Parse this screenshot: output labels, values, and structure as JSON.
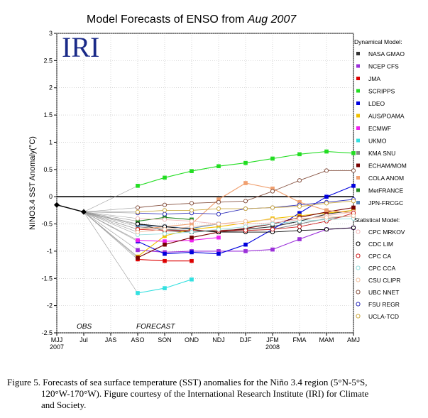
{
  "chart_data": {
    "type": "line",
    "title_main": "Model Forecasts of ENSO from ",
    "title_italic": "Aug 2007",
    "logo_text": "IRI",
    "ylabel": "NINO3.4 SST Anomaly(°C)",
    "ylim": [
      -2.5,
      3
    ],
    "yticks": [
      "3",
      "2.5",
      "2",
      "1.5",
      "1",
      "0.5",
      "0",
      "-0.5",
      "-1",
      "-1.5",
      "-2",
      "-2.5"
    ],
    "categories": [
      "MJJ",
      "Jul",
      "JAS",
      "ASO",
      "SON",
      "OND",
      "NDJ",
      "DJF",
      "JFM",
      "FMA",
      "MAM",
      "AMJ"
    ],
    "year_labels": [
      {
        "text": "2007",
        "index": 0
      },
      {
        "text": "2008",
        "index": 8
      }
    ],
    "obs_label": "OBS",
    "forecast_label": "FORECAST",
    "observed": {
      "values": [
        -0.15,
        -0.28
      ],
      "color": "#000000"
    },
    "dynamical_heading": "Dynamical Model:",
    "statistical_heading": "Statistical Model:",
    "series": [
      {
        "name": "NASA GMAO",
        "group": "dynamical",
        "color": "#333333",
        "marker": "square",
        "values": [
          null,
          null,
          null,
          -0.5,
          -0.62,
          -0.65,
          -0.62,
          -0.6,
          -0.55,
          -0.45,
          -0.32,
          -0.25
        ]
      },
      {
        "name": "NCEP CFS",
        "group": "dynamical",
        "color": "#9b30d9",
        "marker": "square",
        "values": [
          null,
          null,
          null,
          -0.98,
          -1.02,
          -1.0,
          -1.0,
          -1.0,
          -0.97,
          -0.78,
          -0.6,
          -0.57
        ]
      },
      {
        "name": "JMA",
        "group": "dynamical",
        "color": "#dd0000",
        "marker": "square",
        "values": [
          null,
          null,
          null,
          -1.15,
          -1.18,
          -1.18,
          null,
          null,
          null,
          null,
          null,
          null
        ]
      },
      {
        "name": "SCRIPPS",
        "group": "dynamical",
        "color": "#22dd22",
        "marker": "square",
        "values": [
          null,
          null,
          null,
          0.2,
          0.35,
          0.47,
          0.56,
          0.62,
          0.7,
          0.78,
          0.83,
          0.8
        ]
      },
      {
        "name": "LDEO",
        "group": "dynamical",
        "color": "#0000dd",
        "marker": "square",
        "values": [
          null,
          null,
          null,
          -0.82,
          -1.05,
          -1.02,
          -1.05,
          -0.88,
          -0.6,
          -0.3,
          0.0,
          0.2
        ]
      },
      {
        "name": "AUS/POAMA",
        "group": "dynamical",
        "color": "#f0c000",
        "marker": "square",
        "values": [
          null,
          null,
          null,
          -1.1,
          -0.72,
          -0.6,
          -0.55,
          -0.48,
          -0.4,
          -0.35,
          -0.3,
          -0.25
        ]
      },
      {
        "name": "ECMWF",
        "group": "dynamical",
        "color": "#ee22ee",
        "marker": "square",
        "values": [
          null,
          null,
          null,
          -0.8,
          -0.82,
          -0.8,
          -0.75,
          null,
          null,
          null,
          null,
          null
        ]
      },
      {
        "name": "UKMO",
        "group": "dynamical",
        "color": "#33e0e0",
        "marker": "square",
        "values": [
          null,
          null,
          null,
          -1.77,
          -1.68,
          -1.52,
          null,
          null,
          null,
          null,
          null,
          null
        ]
      },
      {
        "name": "KMA SNU",
        "group": "dynamical",
        "color": "#888888",
        "marker": "square",
        "values": [
          null,
          null,
          null,
          -0.55,
          -0.6,
          -0.62,
          -0.65,
          -0.62,
          -0.6,
          -0.5,
          -0.4,
          -0.35
        ]
      },
      {
        "name": "ECHAM/MOM",
        "group": "dynamical",
        "color": "#770000",
        "marker": "square",
        "values": [
          null,
          null,
          null,
          -1.12,
          -0.88,
          -0.75,
          -0.65,
          -0.58,
          -0.5,
          -0.38,
          -0.28,
          -0.2
        ]
      },
      {
        "name": "COLA ANOM",
        "group": "dynamical",
        "color": "#f0a070",
        "marker": "square",
        "values": [
          null,
          null,
          null,
          -0.6,
          -0.55,
          -0.5,
          -0.05,
          0.25,
          0.15,
          -0.1,
          -0.25,
          -0.3
        ]
      },
      {
        "name": "MetFRANCE",
        "group": "dynamical",
        "color": "#228822",
        "marker": "square",
        "values": [
          null,
          null,
          null,
          -0.45,
          -0.38,
          -0.42,
          null,
          null,
          null,
          null,
          null,
          null
        ]
      },
      {
        "name": "JPN-FRCGC",
        "group": "dynamical",
        "color": "#5588bb",
        "marker": "square",
        "values": [
          null,
          null,
          null,
          -0.52,
          -0.55,
          -0.58,
          -0.5,
          null,
          null,
          null,
          null,
          null
        ]
      },
      {
        "name": "CPC MRKOV",
        "group": "statistical",
        "color": "#f0b8b8",
        "marker": "circle",
        "values": [
          null,
          null,
          null,
          -0.4,
          -0.42,
          -0.45,
          -0.5,
          -0.5,
          -0.48,
          -0.42,
          -0.35,
          -0.28
        ]
      },
      {
        "name": "CDC LIM",
        "group": "statistical",
        "color": "#000000",
        "marker": "circle",
        "values": [
          null,
          null,
          null,
          -0.5,
          -0.55,
          -0.6,
          -0.65,
          -0.65,
          -0.65,
          -0.62,
          -0.6,
          -0.57
        ]
      },
      {
        "name": "CPC CA",
        "group": "statistical",
        "color": "#cc2222",
        "marker": "circle",
        "values": [
          null,
          null,
          null,
          -0.6,
          -0.62,
          -0.62,
          -0.62,
          -0.62,
          -0.6,
          -0.55,
          -0.45,
          -0.3
        ]
      },
      {
        "name": "CPC CCA",
        "group": "statistical",
        "color": "#99dddd",
        "marker": "circle",
        "values": [
          null,
          null,
          null,
          -0.7,
          -0.68,
          -0.65,
          -0.6,
          -0.55,
          -0.5,
          -0.45,
          -0.42,
          -0.4
        ]
      },
      {
        "name": "CSU CLIPR",
        "group": "statistical",
        "color": "#f0c0a0",
        "marker": "circle",
        "values": [
          null,
          null,
          null,
          -0.65,
          -0.6,
          -0.55,
          -0.5,
          -0.45,
          -0.42,
          -0.4,
          -0.38,
          -0.35
        ]
      },
      {
        "name": "UBC NNET",
        "group": "statistical",
        "color": "#885544",
        "marker": "circle",
        "values": [
          null,
          null,
          null,
          -0.2,
          -0.15,
          -0.12,
          -0.1,
          -0.08,
          0.1,
          0.3,
          0.48,
          0.48
        ]
      },
      {
        "name": "FSU REGR",
        "group": "statistical",
        "color": "#3333bb",
        "marker": "circle",
        "values": [
          null,
          null,
          null,
          -0.3,
          -0.32,
          -0.3,
          -0.32,
          -0.22,
          -0.2,
          -0.15,
          -0.1,
          -0.05
        ]
      },
      {
        "name": "UCLA-TCD",
        "group": "statistical",
        "color": "#ccaa44",
        "marker": "circle",
        "values": [
          null,
          null,
          null,
          -0.28,
          -0.25,
          -0.25,
          -0.22,
          -0.22,
          -0.2,
          -0.18,
          -0.12,
          -0.08
        ]
      }
    ]
  },
  "caption": {
    "line1": "Figure 5. Forecasts of sea surface temperature (SST) anomalies for the Niño 3.4 region (5°N-5°S,",
    "line2": "120°W-170°W).  Figure courtesy of the International Research Institute (IRI) for Climate",
    "line3": "and Society."
  }
}
